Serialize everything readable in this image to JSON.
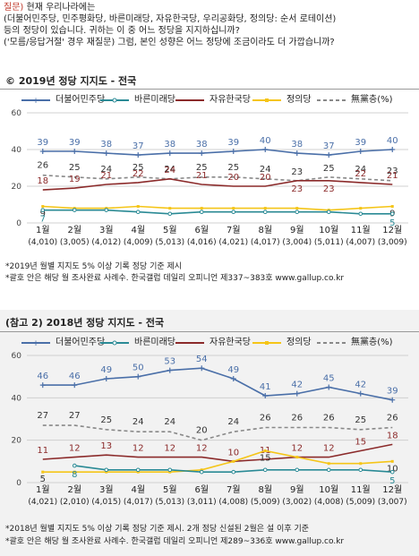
{
  "question": {
    "tag": "질문)",
    "lines": [
      "현재 우리나라에는",
      "(더불어민주당, 민주평화당, 바른미래당, 자유한국당, 우리공화당, 정의당: 순서 로테이션)",
      "등의 정당이 있습니다. 귀하는 이 중 어느 정당을 지지하십니까?",
      "('모름/응답거절' 경우 재질문) 그럼, 본인 성향은 어느 정당에 조금이라도 더 가깝습니까?"
    ]
  },
  "colors": {
    "minjoo": "#4a6fa8",
    "bareun": "#2a8a95",
    "jayu": "#8b2a2a",
    "jeongui": "#f5c518",
    "none": "#888888"
  },
  "chart_data": [
    {
      "type": "line",
      "title": "©  2019년 정당 지지도 - 전국",
      "categories": [
        "1월",
        "2월",
        "3월",
        "4월",
        "5월",
        "6월",
        "7월",
        "8월",
        "9월",
        "10월",
        "11월",
        "12월"
      ],
      "sample_sizes": [
        "(4,010)",
        "(3,005)",
        "(4,012)",
        "(4,009)",
        "(5,013)",
        "(4,016)",
        "(4,021)",
        "(4,017)",
        "(3,004)",
        "(5,011)",
        "(4,007)",
        "(3,009)"
      ],
      "ylim": [
        0,
        60
      ],
      "yticks": [
        "0",
        "20",
        "40",
        "60"
      ],
      "legend": [
        "더불어민주당",
        "바른미래당",
        "자유한국당",
        "정의당",
        "無黨층(%)"
      ],
      "series": [
        {
          "name": "더불어민주당",
          "key": "minjoo",
          "values": [
            39,
            39,
            38,
            37,
            38,
            38,
            39,
            40,
            38,
            37,
            39,
            40
          ],
          "labels": [
            "39",
            "39",
            "38",
            "37",
            "38",
            "38",
            "39",
            "40",
            "38",
            "37",
            "39",
            "40"
          ]
        },
        {
          "name": "無黨층(%)",
          "key": "none",
          "values": [
            26,
            25,
            24,
            25,
            24,
            25,
            25,
            24,
            23,
            25,
            24,
            23
          ],
          "labels": [
            "26",
            "25",
            "24",
            "25",
            "24",
            "25",
            "25",
            "24",
            "23",
            "25",
            "24",
            "23"
          ]
        },
        {
          "name": "자유한국당",
          "key": "jayu",
          "values": [
            18,
            19,
            21,
            22,
            24,
            21,
            20,
            20,
            23,
            23,
            22,
            21
          ],
          "labels": [
            "18",
            "19",
            "21",
            "22",
            "24",
            "21",
            "20",
            "20",
            "23",
            "23",
            "22",
            "21"
          ]
        },
        {
          "name": "정의당",
          "key": "jeongui",
          "values": [
            9,
            8,
            8,
            9,
            8,
            8,
            8,
            8,
            8,
            7,
            8,
            9
          ],
          "labels": [
            "9",
            "",
            "",
            "",
            "",
            "",
            "",
            "",
            "",
            "",
            "",
            "9"
          ]
        },
        {
          "name": "바른미래당",
          "key": "bareun",
          "values": [
            7,
            7,
            7,
            6,
            5,
            6,
            6,
            6,
            6,
            6,
            5,
            5
          ],
          "labels": [
            "7",
            "",
            "",
            "",
            "",
            "",
            "",
            "",
            "",
            "",
            "",
            "5"
          ]
        }
      ],
      "notes": [
        "*2019년 월별 지지도 5% 이상 기록 정당 기준 제시",
        "*괄호 안은 해당 월 조사완료 사례수. 한국갤럽 데일리 오피니언 제337~383호 www.gallup.co.kr"
      ]
    },
    {
      "type": "line",
      "title": "(참고 2) 2018년 정당 지지도 - 전국",
      "categories": [
        "1월",
        "2월",
        "3월",
        "4월",
        "5월",
        "6월",
        "7월",
        "8월",
        "9월",
        "10월",
        "11월",
        "12월"
      ],
      "sample_sizes": [
        "(4,021)",
        "(2,010)",
        "(4,015)",
        "(4,017)",
        "(5,013)",
        "(3,011)",
        "(4,008)",
        "(5,009)",
        "(3,002)",
        "(4,008)",
        "(5,009)",
        "(3,007)"
      ],
      "ylim": [
        0,
        60
      ],
      "yticks": [
        "0",
        "20",
        "40",
        "60"
      ],
      "legend": [
        "더불어민주당",
        "바른미래당",
        "자유한국당",
        "정의당",
        "無黨층(%)"
      ],
      "series": [
        {
          "name": "더불어민주당",
          "key": "minjoo",
          "values": [
            46,
            46,
            49,
            50,
            53,
            54,
            49,
            41,
            42,
            45,
            42,
            39
          ],
          "labels": [
            "46",
            "46",
            "49",
            "50",
            "53",
            "54",
            "49",
            "41",
            "42",
            "45",
            "42",
            "39"
          ]
        },
        {
          "name": "無黨층(%)",
          "key": "none",
          "values": [
            27,
            27,
            25,
            24,
            24,
            20,
            24,
            26,
            26,
            26,
            25,
            26
          ],
          "labels": [
            "27",
            "27",
            "25",
            "24",
            "24",
            "20",
            "24",
            "26",
            "26",
            "26",
            "25",
            "26"
          ]
        },
        {
          "name": "자유한국당",
          "key": "jayu",
          "values": [
            11,
            12,
            13,
            12,
            12,
            12,
            10,
            11,
            12,
            12,
            15,
            18
          ],
          "labels": [
            "11",
            "12",
            "13",
            "12",
            "12",
            "12",
            "10",
            "11",
            "12",
            "12",
            "15",
            "18"
          ]
        },
        {
          "name": "정의당",
          "key": "jeongui",
          "values": [
            5,
            5,
            5,
            5,
            5,
            6,
            10,
            15,
            12,
            9,
            9,
            10
          ],
          "labels": [
            "5",
            "",
            "",
            "",
            "",
            "",
            "",
            "15",
            "",
            "",
            "",
            "10"
          ]
        },
        {
          "name": "바른미래당",
          "key": "bareun",
          "values": [
            null,
            8,
            6,
            6,
            6,
            5,
            5,
            6,
            6,
            6,
            6,
            5
          ],
          "labels": [
            "",
            "8",
            "",
            "",
            "",
            "",
            "",
            "",
            "",
            "",
            "",
            "5"
          ]
        }
      ],
      "notes": [
        "*2018년 월별 지지도 5% 이상 기록 정당 기준 제시. 2개 정당 신설된 2월은 설 이후 기준",
        "*괄호 안은 해당 월 조사완료 사례수. 한국갤럽 데일리 오피니언 제289~336호 www.gallup.co.kr"
      ]
    }
  ]
}
